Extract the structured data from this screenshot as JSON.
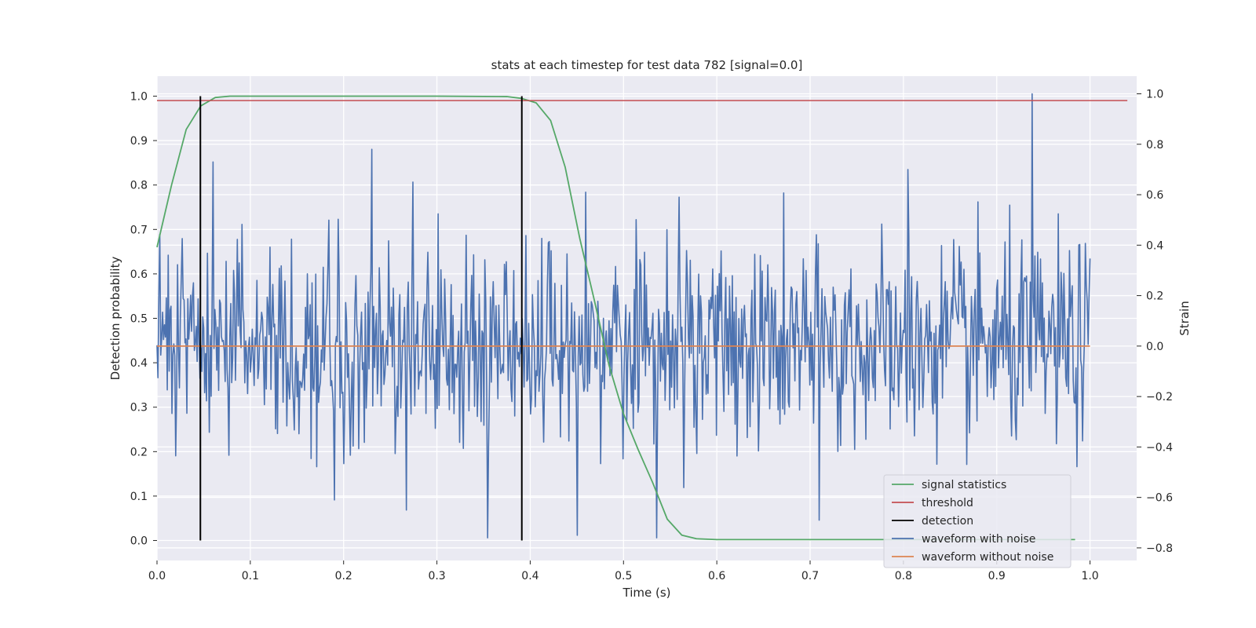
{
  "chart_data": {
    "type": "line",
    "title": "stats at each timestep for test data 782 [signal=0.0]",
    "xlabel": "Time (s)",
    "ylabel_left": "Detection probability",
    "ylabel_right": "Strain",
    "xlim": [
      0.0,
      1.05
    ],
    "ylim_left": [
      -0.045,
      1.045
    ],
    "ylim_right": [
      -0.85,
      1.07
    ],
    "x_ticks": [
      0.0,
      0.1,
      0.2,
      0.3,
      0.4,
      0.5,
      0.6,
      0.7,
      0.8,
      0.9,
      1.0
    ],
    "x_tick_labels": [
      "0.0",
      "0.1",
      "0.2",
      "0.3",
      "0.4",
      "0.5",
      "0.6",
      "0.7",
      "0.8",
      "0.9",
      "1.0"
    ],
    "y_left_ticks": [
      0.0,
      0.1,
      0.2,
      0.3,
      0.4,
      0.5,
      0.6,
      0.7,
      0.8,
      0.9,
      1.0
    ],
    "y_left_tick_labels": [
      "0.0",
      "0.1",
      "0.2",
      "0.3",
      "0.4",
      "0.5",
      "0.6",
      "0.7",
      "0.8",
      "0.9",
      "1.0"
    ],
    "y_right_ticks": [
      -0.8,
      -0.6,
      -0.4,
      -0.2,
      0.0,
      0.2,
      0.4,
      0.6,
      0.8,
      1.0
    ],
    "y_right_tick_labels": [
      "−0.8",
      "−0.6",
      "−0.4",
      "−0.2",
      "0.0",
      "0.2",
      "0.4",
      "0.6",
      "0.8",
      "1.0"
    ],
    "grid": true,
    "legend_position": "bottom-right",
    "colors": {
      "signal": "#55a868",
      "threshold": "#c44e52",
      "detection": "#000000",
      "noisy": "#4c72b0",
      "clean": "#dd8452",
      "background": "#eaeaf2",
      "grid": "#ffffff"
    },
    "signal_statistics": {
      "name": "signal statistics",
      "axis": "left",
      "x": [
        0.0,
        0.0156,
        0.0313,
        0.0469,
        0.0625,
        0.0781,
        0.1,
        0.2,
        0.3,
        0.375,
        0.3906,
        0.4063,
        0.4219,
        0.4375,
        0.4531,
        0.4688,
        0.4844,
        0.5,
        0.5156,
        0.5313,
        0.5469,
        0.5625,
        0.5781,
        0.6,
        0.7,
        0.8,
        0.9,
        0.984
      ],
      "y": [
        0.66,
        0.8,
        0.925,
        0.978,
        0.997,
        1.0,
        1.0,
        1.0,
        1.0,
        0.999,
        0.995,
        0.985,
        0.945,
        0.84,
        0.68,
        0.54,
        0.395,
        0.285,
        0.205,
        0.13,
        0.048,
        0.012,
        0.004,
        0.002,
        0.002,
        0.002,
        0.002,
        0.002
      ]
    },
    "threshold": {
      "name": "threshold",
      "axis": "left",
      "value": 0.99,
      "x_range": [
        0.0,
        1.04
      ]
    },
    "detection": {
      "name": "detection",
      "axis": "left",
      "x": [
        0.0465,
        0.391
      ],
      "y_range": [
        0.0,
        1.0
      ]
    },
    "waveform_with_noise": {
      "name": "waveform with noise",
      "axis": "right",
      "x_range": [
        0.0,
        1.0
      ],
      "n_points": 1000,
      "y_range_approx": [
        -0.8,
        1.0
      ],
      "peaks": [
        {
          "x": 0.938,
          "y": 1.0
        },
        {
          "x": 0.354,
          "y": -0.76
        },
        {
          "x": 0.536,
          "y": -0.76
        },
        {
          "x": 0.23,
          "y": 0.78
        },
        {
          "x": 0.06,
          "y": 0.73
        },
        {
          "x": 0.805,
          "y": 0.7
        },
        {
          "x": 0.274,
          "y": 0.65
        },
        {
          "x": 0.459,
          "y": 0.61
        },
        {
          "x": 0.45,
          "y": -0.75
        },
        {
          "x": 0.267,
          "y": -0.65
        },
        {
          "x": 0.71,
          "y": -0.69
        },
        {
          "x": 0.19,
          "y": -0.61
        }
      ]
    },
    "waveform_without_noise": {
      "name": "waveform without noise",
      "axis": "right",
      "value": 0.0,
      "x_range": [
        0.0,
        1.0
      ]
    },
    "legend": [
      "signal statistics",
      "threshold",
      "detection",
      "waveform with noise",
      "waveform without noise"
    ]
  }
}
